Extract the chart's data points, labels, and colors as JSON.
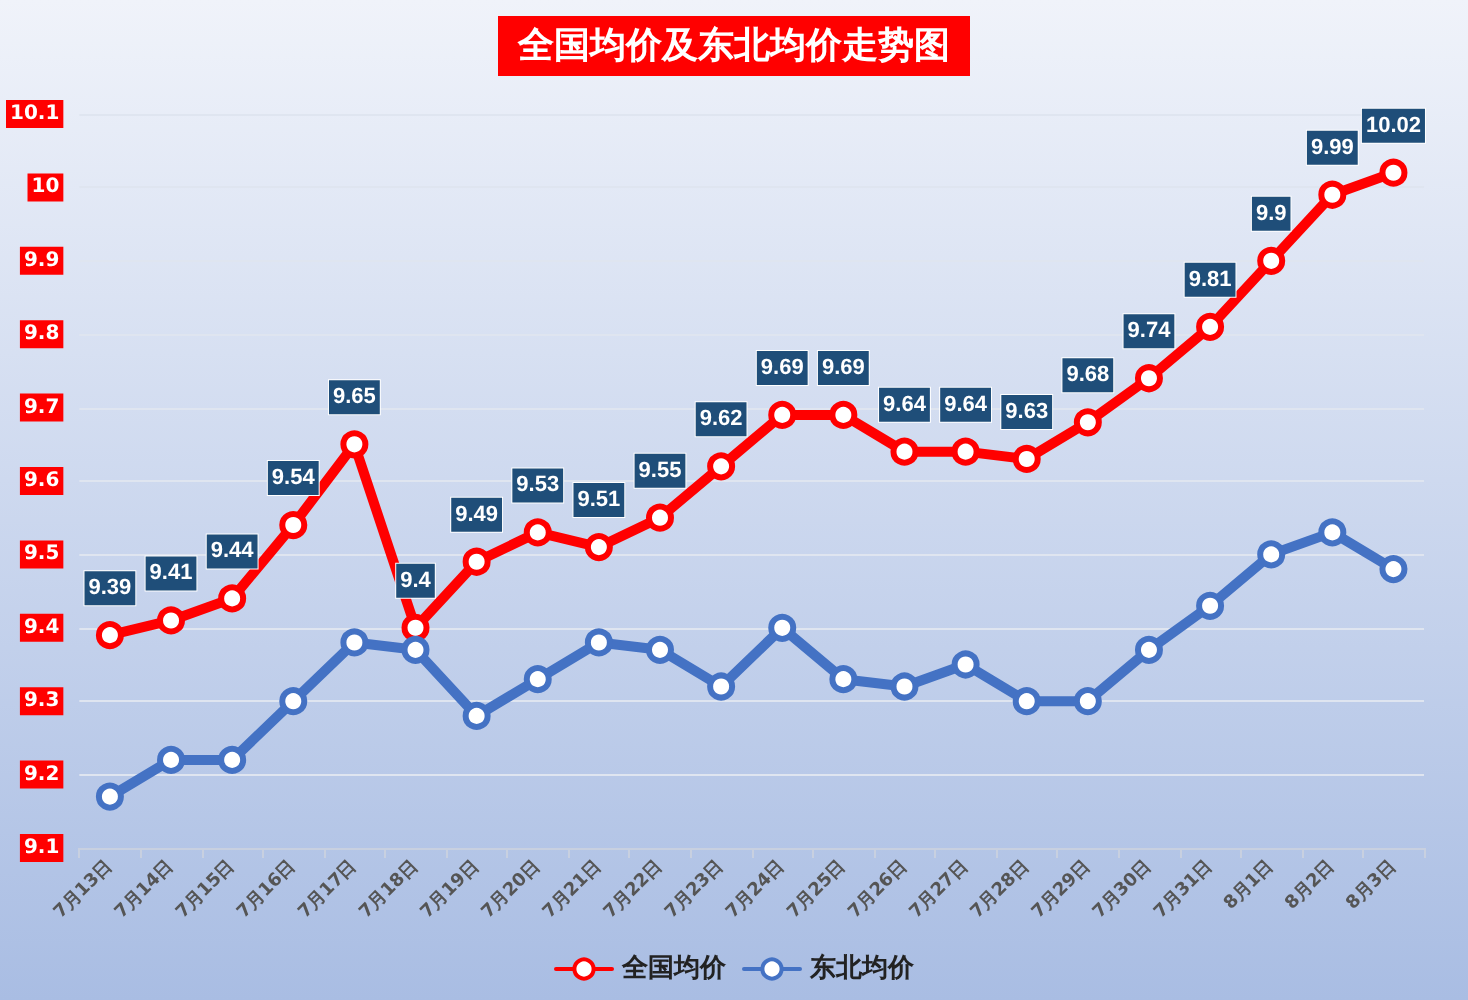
{
  "chart_data": {
    "type": "line",
    "title": "全国均价及东北均价走势图",
    "categories": [
      "7月13日",
      "7月14日",
      "7月15日",
      "7月16日",
      "7月17日",
      "7月18日",
      "7月19日",
      "7月20日",
      "7月21日",
      "7月22日",
      "7月23日",
      "7月24日",
      "7月25日",
      "7月26日",
      "7月27日",
      "7月28日",
      "7月29日",
      "7月30日",
      "7月31日",
      "8月1日",
      "8月2日",
      "8月3日"
    ],
    "series": [
      {
        "name": "全国均价",
        "color": "#ff0000",
        "values": [
          9.39,
          9.41,
          9.44,
          9.54,
          9.65,
          9.4,
          9.49,
          9.53,
          9.51,
          9.55,
          9.62,
          9.69,
          9.69,
          9.64,
          9.64,
          9.63,
          9.68,
          9.74,
          9.81,
          9.9,
          9.99,
          10.02
        ],
        "value_labels": [
          "9.39",
          "9.41",
          "9.44",
          "9.54",
          "9.65",
          "9.4",
          "9.49",
          "9.53",
          "9.51",
          "9.55",
          "9.62",
          "9.69",
          "9.69",
          "9.64",
          "9.64",
          "9.63",
          "9.68",
          "9.74",
          "9.81",
          "9.9",
          "9.99",
          "10.02"
        ]
      },
      {
        "name": "东北均价",
        "color": "#4472c4",
        "values": [
          9.17,
          9.22,
          9.22,
          9.3,
          9.38,
          9.37,
          9.28,
          9.33,
          9.38,
          9.37,
          9.32,
          9.4,
          9.33,
          9.32,
          9.35,
          9.3,
          9.3,
          9.37,
          9.43,
          9.5,
          9.53,
          9.48
        ]
      }
    ],
    "ylim": [
      9.1,
      10.1
    ],
    "yticks": [
      9.1,
      9.2,
      9.3,
      9.4,
      9.5,
      9.6,
      9.7,
      9.8,
      9.9,
      10,
      10.1
    ],
    "grid": "y",
    "legend": "bottom",
    "marker": "circle",
    "line_style": "solid"
  }
}
